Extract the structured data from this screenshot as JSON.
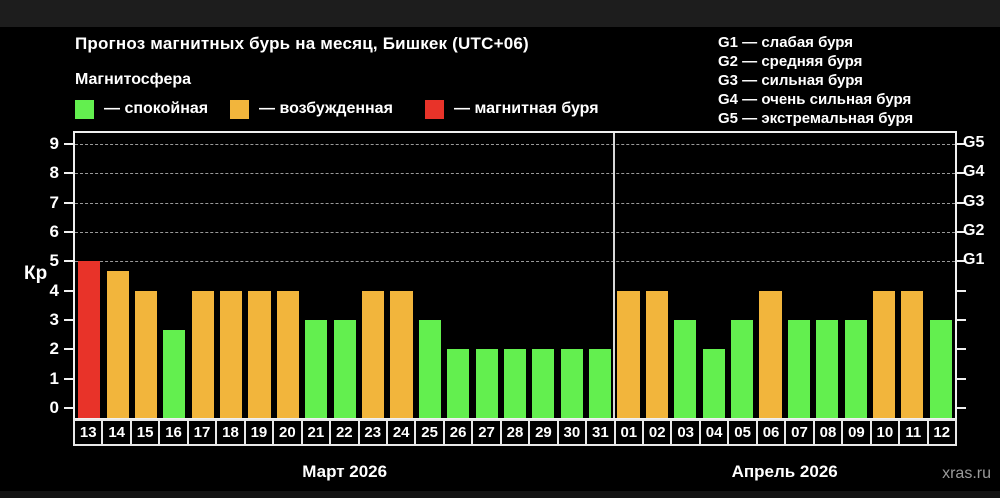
{
  "header": {
    "title": "Прогноз магнитных бурь на месяц, Бишкек (UTC+06)",
    "subtitle": "Магнитосфера"
  },
  "legend": {
    "items": [
      {
        "key": "quiet",
        "label": "— спокойная"
      },
      {
        "key": "excited",
        "label": "— возбужденная"
      },
      {
        "key": "storm",
        "label": "— магнитная буря"
      }
    ]
  },
  "g_legend": {
    "items": [
      "G1 — слабая буря",
      "G2 — средняя буря",
      "G3 — сильная буря",
      "G4 — очень сильная буря",
      "G5 — экстремальная буря"
    ]
  },
  "watermark": "xras.ru",
  "chart_data": {
    "type": "bar",
    "title": "Прогноз магнитных бурь на месяц, Бишкек (UTC+06)",
    "xlabel": "",
    "ylabel": "Кр",
    "ylim": [
      0,
      9.45
    ],
    "grid": "dashed horizontal at Kp 5-9",
    "legend_position": "top-left and top-right",
    "y_ticks": [
      0,
      1,
      2,
      3,
      4,
      5,
      6,
      7,
      8,
      9
    ],
    "gridline_levels": [
      5,
      6,
      7,
      8,
      9
    ],
    "right_axis": [
      {
        "label": "G1",
        "kp": 5
      },
      {
        "label": "G2",
        "kp": 6
      },
      {
        "label": "G3",
        "kp": 7
      },
      {
        "label": "G4",
        "kp": 8
      },
      {
        "label": "G5",
        "kp": 9
      }
    ],
    "colors": {
      "quiet": "#63ef4f",
      "excited": "#f2b53c",
      "storm": "#e83329"
    },
    "months": [
      {
        "label": "Март 2026",
        "days": [
          {
            "day": "13",
            "kp": 5,
            "state": "storm"
          },
          {
            "day": "14",
            "kp": 4.67,
            "state": "excited"
          },
          {
            "day": "15",
            "kp": 4,
            "state": "excited"
          },
          {
            "day": "16",
            "kp": 2.67,
            "state": "quiet"
          },
          {
            "day": "17",
            "kp": 4,
            "state": "excited"
          },
          {
            "day": "18",
            "kp": 4,
            "state": "excited"
          },
          {
            "day": "19",
            "kp": 4,
            "state": "excited"
          },
          {
            "day": "20",
            "kp": 4,
            "state": "excited"
          },
          {
            "day": "21",
            "kp": 3,
            "state": "quiet"
          },
          {
            "day": "22",
            "kp": 3,
            "state": "quiet"
          },
          {
            "day": "23",
            "kp": 4,
            "state": "excited"
          },
          {
            "day": "24",
            "kp": 4,
            "state": "excited"
          },
          {
            "day": "25",
            "kp": 3,
            "state": "quiet"
          },
          {
            "day": "26",
            "kp": 2,
            "state": "quiet"
          },
          {
            "day": "27",
            "kp": 2,
            "state": "quiet"
          },
          {
            "day": "28",
            "kp": 2,
            "state": "quiet"
          },
          {
            "day": "29",
            "kp": 2,
            "state": "quiet"
          },
          {
            "day": "30",
            "kp": 2,
            "state": "quiet"
          },
          {
            "day": "31",
            "kp": 2,
            "state": "quiet"
          }
        ]
      },
      {
        "label": "Апрель 2026",
        "days": [
          {
            "day": "01",
            "kp": 4,
            "state": "excited"
          },
          {
            "day": "02",
            "kp": 4,
            "state": "excited"
          },
          {
            "day": "03",
            "kp": 3,
            "state": "quiet"
          },
          {
            "day": "04",
            "kp": 2,
            "state": "quiet"
          },
          {
            "day": "05",
            "kp": 3,
            "state": "quiet"
          },
          {
            "day": "06",
            "kp": 4,
            "state": "excited"
          },
          {
            "day": "07",
            "kp": 3,
            "state": "quiet"
          },
          {
            "day": "08",
            "kp": 3,
            "state": "quiet"
          },
          {
            "day": "09",
            "kp": 3,
            "state": "quiet"
          },
          {
            "day": "10",
            "kp": 4,
            "state": "excited"
          },
          {
            "day": "11",
            "kp": 4,
            "state": "excited"
          },
          {
            "day": "12",
            "kp": 3,
            "state": "quiet"
          }
        ]
      }
    ]
  }
}
